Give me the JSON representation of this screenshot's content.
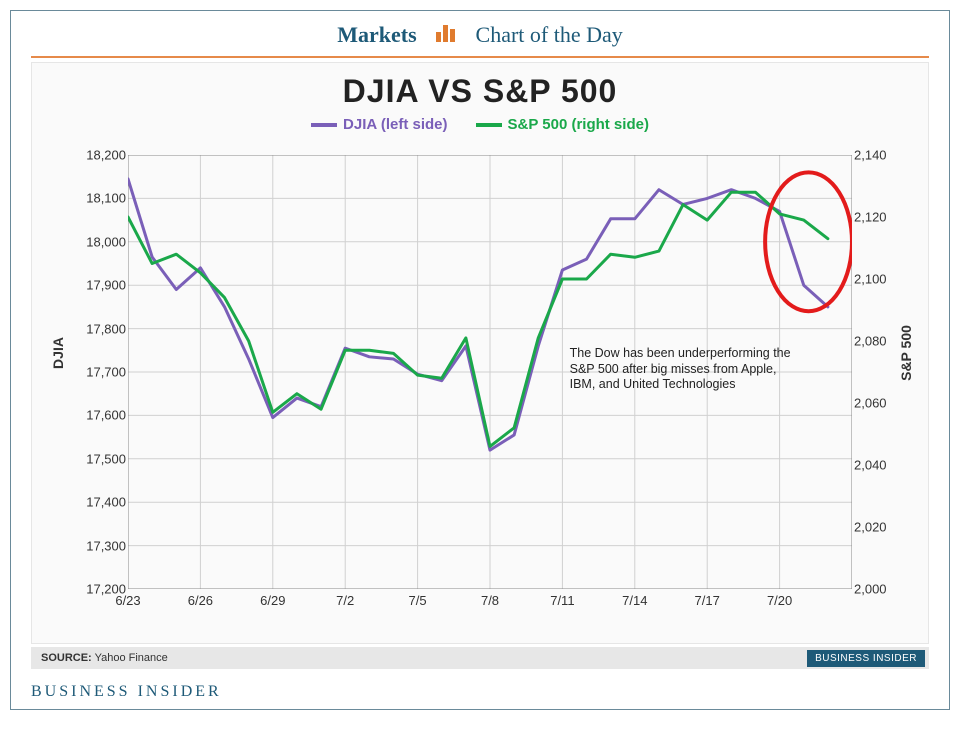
{
  "header": {
    "markets_label": "Markets",
    "cotd_label": "Chart of the Day",
    "icon_color": "#e07b2e",
    "rule_color": "#e68a4a",
    "text_color": "#1e5a78"
  },
  "chart": {
    "type": "line-dual-axis",
    "title_text": "DJIA VS S&P 500",
    "title_fontsize": 32,
    "background_color": "#fafafa",
    "grid_color": "#d0d0d0",
    "axis_color": "#888888",
    "x": {
      "ticks": [
        "6/23",
        "6/26",
        "6/29",
        "7/2",
        "7/5",
        "7/8",
        "7/11",
        "7/14",
        "7/17",
        "7/20"
      ],
      "tick_positions": [
        0,
        3,
        6,
        9,
        12,
        15,
        18,
        21,
        24,
        27
      ],
      "domain": [
        0,
        30
      ]
    },
    "y_left": {
      "label": "DJIA",
      "min": 17200,
      "max": 18200,
      "tick_step": 100,
      "ticks": [
        17200,
        17300,
        17400,
        17500,
        17600,
        17700,
        17800,
        17900,
        18000,
        18100,
        18200
      ],
      "fontsize": 13
    },
    "y_right": {
      "label": "S&P 500",
      "min": 2000,
      "max": 2140,
      "tick_step": 20,
      "ticks": [
        2000,
        2020,
        2040,
        2060,
        2080,
        2100,
        2120,
        2140
      ],
      "fontsize": 13
    },
    "series": [
      {
        "name": "DJIA (left side)",
        "axis": "left",
        "color": "#7a5fb8",
        "line_width": 3,
        "data": [
          [
            0,
            18145
          ],
          [
            1,
            17965
          ],
          [
            2,
            17890
          ],
          [
            3,
            17940
          ],
          [
            4,
            17850
          ],
          [
            5,
            17730
          ],
          [
            6,
            17595
          ],
          [
            7,
            17640
          ],
          [
            8,
            17620
          ],
          [
            9,
            17755
          ],
          [
            10,
            17735
          ],
          [
            11,
            17730
          ],
          [
            12,
            17695
          ],
          [
            13,
            17680
          ],
          [
            14,
            17760
          ],
          [
            15,
            17520
          ],
          [
            16,
            17555
          ],
          [
            17,
            17760
          ],
          [
            18,
            17935
          ],
          [
            19,
            17960
          ],
          [
            20,
            18053
          ],
          [
            21,
            18053
          ],
          [
            22,
            18120
          ],
          [
            23,
            18086
          ],
          [
            24,
            18100
          ],
          [
            25,
            18120
          ],
          [
            26,
            18100
          ],
          [
            27,
            18070
          ],
          [
            28,
            17900
          ],
          [
            29,
            17850
          ]
        ]
      },
      {
        "name": "S&P 500 (right side)",
        "axis": "right",
        "color": "#1aa84a",
        "line_width": 3,
        "data": [
          [
            0,
            2120
          ],
          [
            1,
            2105
          ],
          [
            2,
            2108
          ],
          [
            3,
            2102
          ],
          [
            4,
            2094
          ],
          [
            5,
            2080
          ],
          [
            6,
            2057
          ],
          [
            7,
            2063
          ],
          [
            8,
            2058
          ],
          [
            9,
            2077
          ],
          [
            10,
            2077
          ],
          [
            11,
            2076
          ],
          [
            12,
            2069
          ],
          [
            13,
            2068
          ],
          [
            14,
            2081
          ],
          [
            15,
            2046
          ],
          [
            16,
            2052
          ],
          [
            17,
            2081
          ],
          [
            18,
            2100
          ],
          [
            19,
            2100
          ],
          [
            20,
            2108
          ],
          [
            21,
            2107
          ],
          [
            22,
            2109
          ],
          [
            23,
            2124
          ],
          [
            24,
            2119
          ],
          [
            25,
            2128
          ],
          [
            26,
            2128
          ],
          [
            27,
            2121
          ],
          [
            28,
            2119
          ],
          [
            29,
            2113
          ]
        ]
      }
    ],
    "legend": {
      "items": [
        {
          "label": "DJIA (left side)",
          "color": "#7a5fb8"
        },
        {
          "label": "S&P 500 (right side)",
          "color": "#1aa84a"
        }
      ],
      "fontsize": 15
    },
    "highlight_ellipse": {
      "cx_x": 28.2,
      "cy_left_y": 18000,
      "rx_x": 1.8,
      "ry_left_y": 160,
      "stroke": "#e31b1b",
      "stroke_width": 4
    },
    "annotation": {
      "text": "The Dow has been underperforming the S&P 500 after big misses from Apple, IBM, and United Technologies",
      "x_x": 18.3,
      "y_left_y": 17760,
      "fontsize": 12.5
    }
  },
  "source": {
    "label": "SOURCE:",
    "value": "Yahoo Finance",
    "badge_text": "BUSINESS INSIDER",
    "badge_bg": "#1e5a78",
    "bar_bg": "#e7e7e7"
  },
  "footer_brand": "BUSINESS INSIDER"
}
